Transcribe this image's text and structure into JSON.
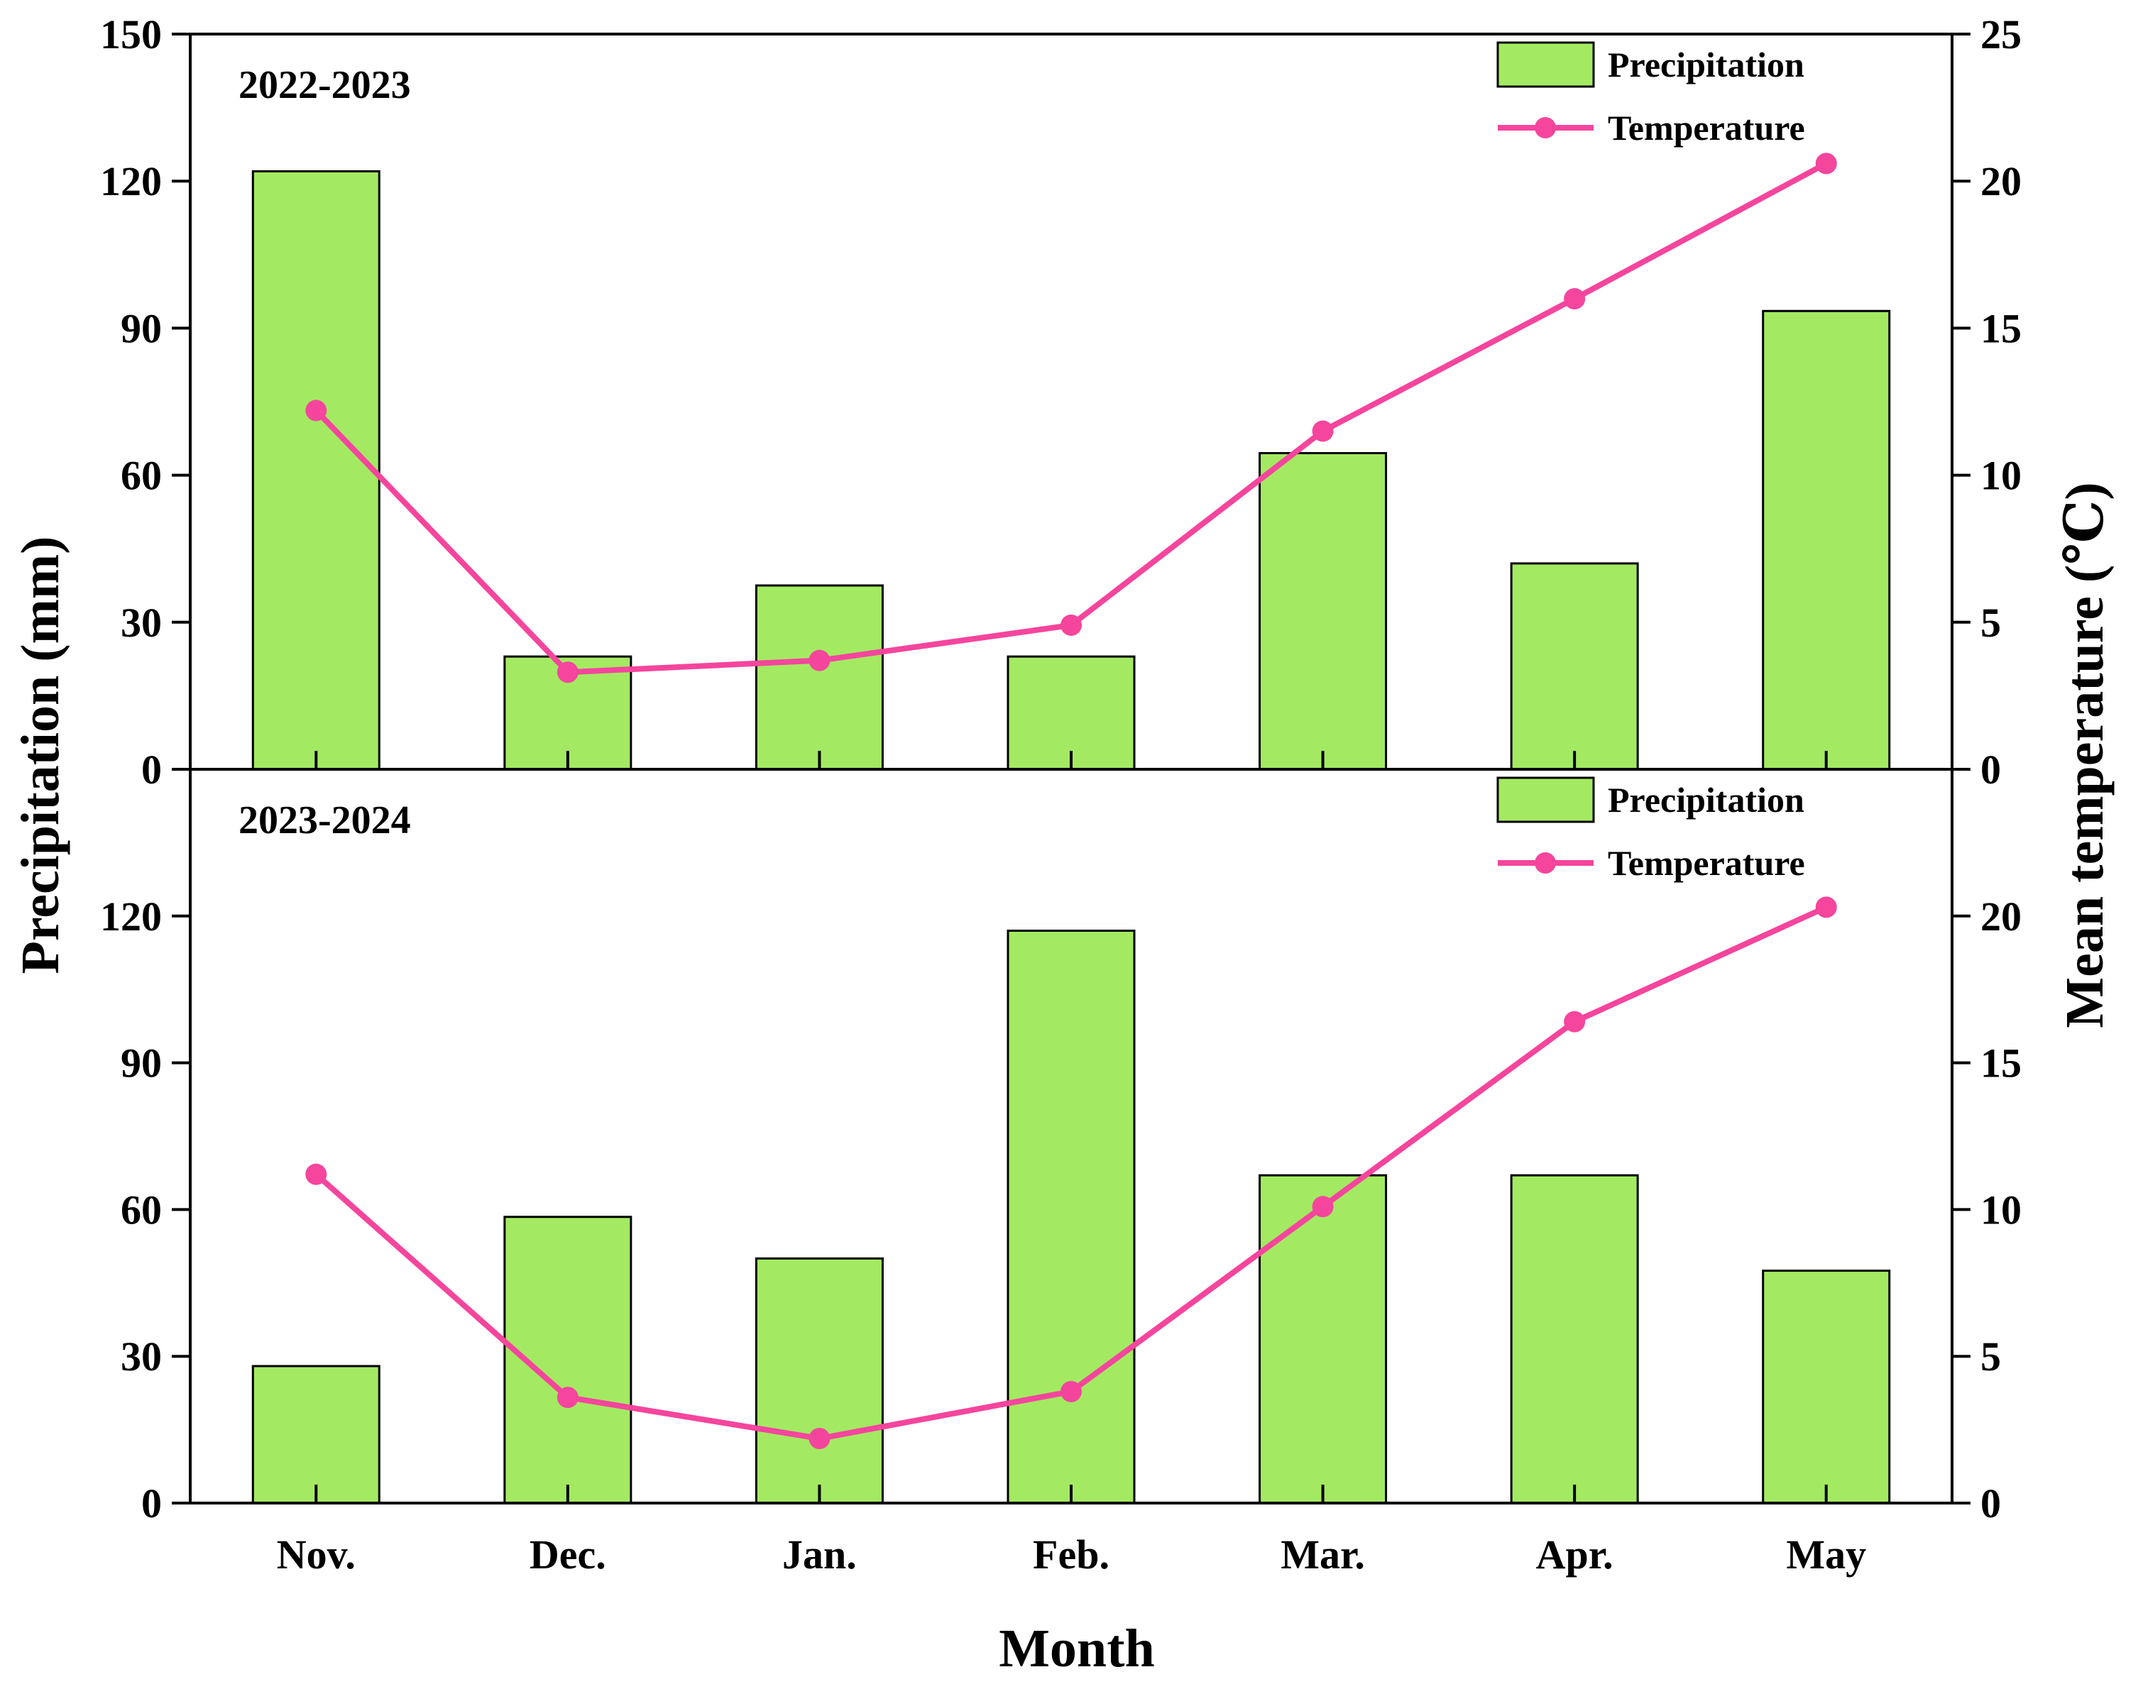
{
  "colors": {
    "bar_fill": "#a3ea62",
    "bar_stroke": "#000000",
    "line": "#f5459d",
    "axis": "#000000"
  },
  "chart_data": {
    "type": "bar",
    "categories": [
      "Nov.",
      "Dec.",
      "Jan.",
      "Feb.",
      "Mar.",
      "Apr.",
      "May"
    ],
    "xlabel": "Month",
    "ylabel": "Precipitation (mm)",
    "y2label": "Mean temperature (℃)",
    "ylim": [
      0,
      150
    ],
    "y2lim": [
      0,
      25
    ],
    "legend_position": "top-right",
    "grid": false,
    "panels": [
      {
        "label": "2022-2023",
        "y_ticks": [
          0,
          30,
          60,
          90,
          120,
          150
        ],
        "y2_ticks": [
          0,
          5,
          10,
          15,
          20,
          25
        ],
        "series": [
          {
            "name": "Precipitation",
            "type": "bar",
            "axis": "left",
            "values": [
              122,
              23,
              37.5,
              23,
              64.5,
              42,
              93.5
            ]
          },
          {
            "name": "Temperature",
            "type": "line",
            "axis": "right",
            "values": [
              12.2,
              3.3,
              3.7,
              4.9,
              11.5,
              16.0,
              20.6
            ]
          }
        ]
      },
      {
        "label": "2023-2024",
        "y_ticks": [
          0,
          30,
          60,
          90,
          120
        ],
        "y2_ticks": [
          0,
          5,
          10,
          15,
          20
        ],
        "series": [
          {
            "name": "Precipitation",
            "type": "bar",
            "axis": "left",
            "values": [
              28,
              58.5,
              50,
              117,
              67,
              67,
              47.5
            ]
          },
          {
            "name": "Temperature",
            "type": "line",
            "axis": "right",
            "values": [
              11.2,
              3.6,
              2.2,
              3.8,
              10.1,
              16.4,
              20.3
            ]
          }
        ]
      }
    ]
  }
}
